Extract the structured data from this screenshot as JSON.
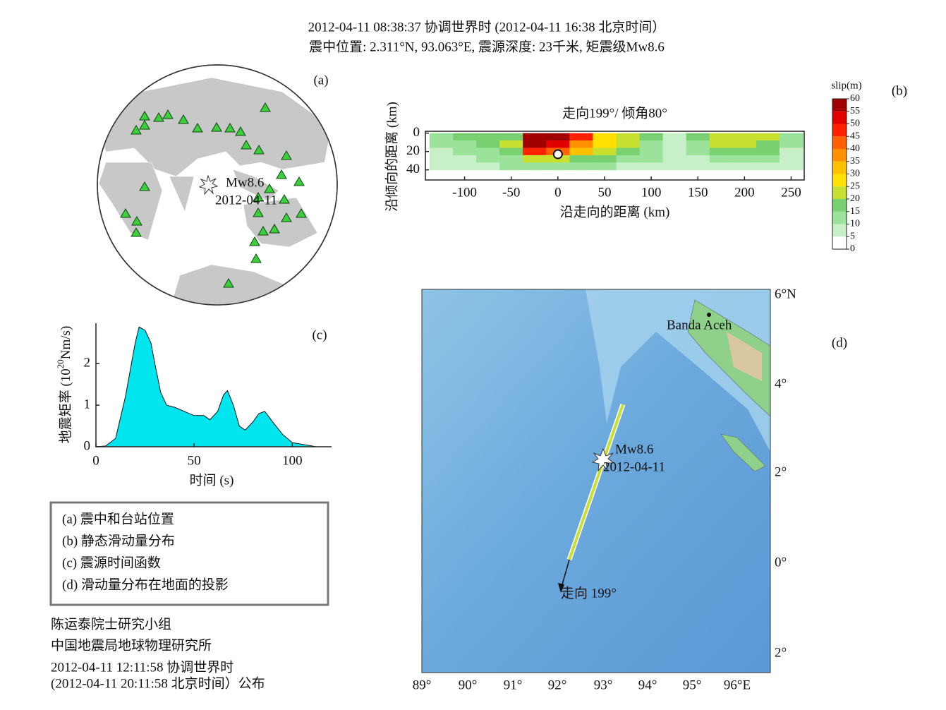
{
  "header": {
    "line1": "2012-04-11 08:38:37 协调世界时 (2012-04-11 16:38 北京时间）",
    "line2": "震中位置: 2.311°N, 93.063°E, 震源深度: 23千米, 矩震级Mw8.6"
  },
  "panel_a": {
    "label": "(a)",
    "event": "Mw8.6",
    "date": "2012-04-11"
  },
  "chart_data": [
    {
      "type": "slip",
      "label": "(b)",
      "title": "走向199°/ 倾角80°",
      "xlabel": "沿走向的距离 (km)",
      "ylabel": "沿倾向的距离 (km)",
      "xlim": [
        -142,
        264
      ],
      "ylim": [
        -2,
        51
      ],
      "xticks": [
        -100,
        -50,
        0,
        50,
        100,
        150,
        200,
        250
      ],
      "yticks": [
        0,
        20,
        40
      ],
      "grid_x": [
        -125,
        -100,
        -75,
        -50,
        -25,
        0,
        25,
        50,
        75,
        100,
        125,
        150,
        175,
        200,
        225,
        250
      ],
      "grid_z": [
        4,
        12,
        20,
        28,
        36
      ],
      "slip": [
        [
          10,
          15,
          15,
          18,
          60,
          60,
          45,
          25,
          20,
          15,
          8,
          15,
          20,
          22,
          20,
          10
        ],
        [
          10,
          12,
          15,
          20,
          55,
          50,
          35,
          25,
          20,
          12,
          8,
          12,
          20,
          22,
          18,
          10
        ],
        [
          8,
          10,
          12,
          18,
          45,
          40,
          30,
          22,
          18,
          12,
          8,
          10,
          15,
          18,
          15,
          8
        ],
        [
          5,
          8,
          10,
          12,
          20,
          20,
          18,
          15,
          12,
          10,
          5,
          8,
          10,
          10,
          10,
          5
        ],
        [
          5,
          5,
          8,
          10,
          12,
          12,
          10,
          10,
          8,
          8,
          5,
          5,
          5,
          5,
          5,
          5
        ]
      ],
      "hypocenter": {
        "x": 0,
        "z": 23
      },
      "colorbar": {
        "title": "slip(m)",
        "ticks": [
          0,
          5,
          10,
          15,
          20,
          25,
          30,
          35,
          40,
          45,
          50,
          55,
          60
        ],
        "colors": [
          "#ffffff",
          "#c8f0c8",
          "#9be39b",
          "#78d070",
          "#c8e030",
          "#ffe000",
          "#ffc000",
          "#ff9000",
          "#ff6000",
          "#ff2000",
          "#e00000",
          "#a00000"
        ]
      }
    },
    {
      "type": "area",
      "label": "(c)",
      "xlabel": "时间 (s)",
      "ylabel": [
        "地震矩率 (10",
        "20",
        "Nm/s)"
      ],
      "color": "#00e5ee",
      "xlim": [
        0,
        120
      ],
      "ylim": [
        0,
        2.97
      ],
      "xticks": [
        0,
        50,
        100
      ],
      "yticks": [
        0,
        1,
        2
      ],
      "x": [
        0,
        5,
        10,
        15,
        20,
        22,
        25,
        28,
        30,
        33,
        36,
        40,
        45,
        50,
        55,
        58,
        62,
        65,
        67,
        70,
        73,
        76,
        80,
        83,
        86,
        90,
        95,
        100,
        105,
        110,
        112
      ],
      "values": [
        0,
        0.02,
        0.2,
        1.2,
        2.5,
        2.88,
        2.8,
        2.5,
        2.0,
        1.3,
        1.0,
        0.95,
        0.85,
        0.75,
        0.75,
        0.65,
        0.85,
        1.25,
        1.35,
        1.0,
        0.5,
        0.4,
        0.6,
        0.8,
        0.85,
        0.6,
        0.3,
        0.1,
        0.06,
        0.02,
        0
      ]
    }
  ],
  "legend": {
    "items": [
      "(a) 震中和台站位置",
      "(b) 静态滑动量分布",
      "(c) 震源时间函数",
      "(d) 滑动量分布在地面的投影"
    ]
  },
  "credits": {
    "lines": [
      "陈运泰院士研究小组",
      "中国地震局地球物理研究所",
      "2012-04-11 12:11:58 协调世界时",
      "(2012-04-11 20:11:58 北京时间）公布"
    ]
  },
  "panel_d": {
    "label": "(d)",
    "place": "Banda Aceh",
    "event": "Mw8.6",
    "date": "2012-04-11",
    "strike": "走向 199°",
    "lat_labels": [
      "6°N",
      "4°",
      "2°",
      "0°",
      "2°"
    ],
    "lon_labels": [
      "89°",
      "90°",
      "91°",
      "92°",
      "93°",
      "94°",
      "95°",
      "96°E"
    ]
  }
}
